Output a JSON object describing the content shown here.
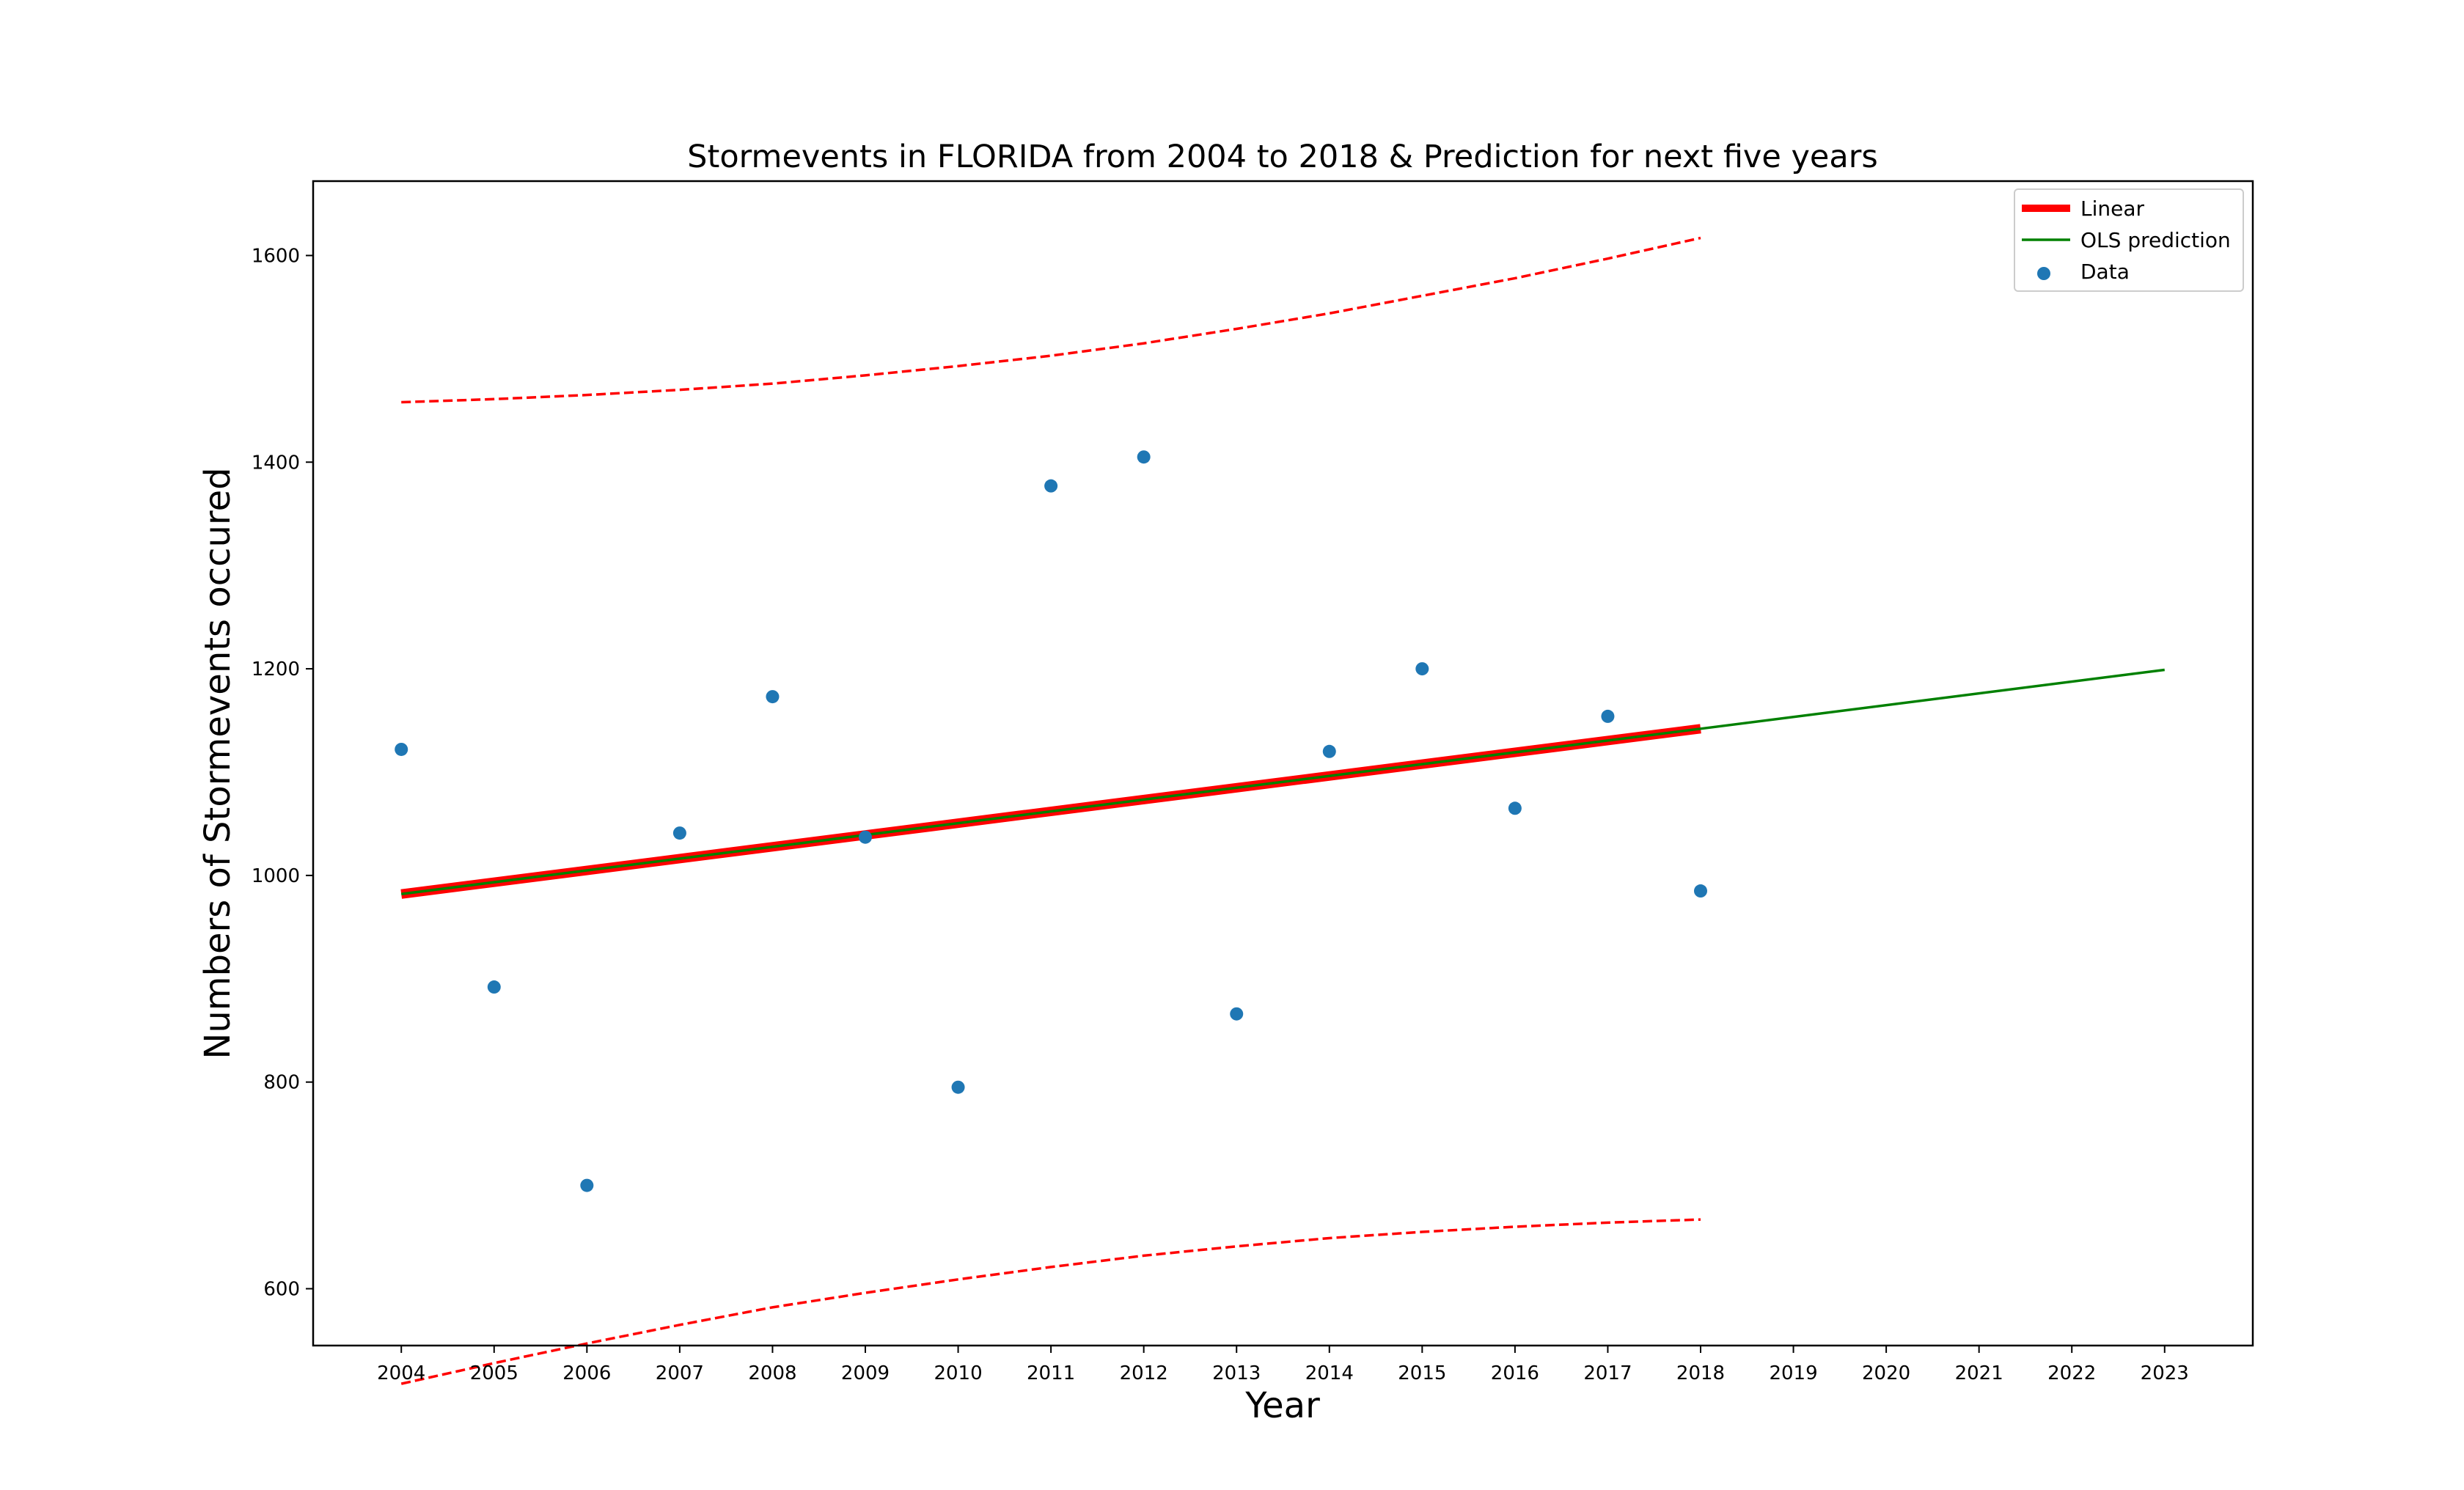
{
  "chart_data": {
    "type": "scatter",
    "title": "Stormevents in FLORIDA from 2004 to 2018 & Prediction for next five years",
    "xlabel": "Year",
    "ylabel": "Numbers of Stormevents occured",
    "xlim": [
      2003.05,
      2023.95
    ],
    "ylim": [
      545,
      1672
    ],
    "x_ticks": [
      2004,
      2005,
      2006,
      2007,
      2008,
      2009,
      2010,
      2011,
      2012,
      2013,
      2014,
      2015,
      2016,
      2017,
      2018,
      2019,
      2020,
      2021,
      2022,
      2023
    ],
    "x_tick_labels": [
      "2004",
      "2005",
      "2006",
      "2007",
      "2008",
      "2009",
      "2010",
      "2011",
      "2012",
      "2013",
      "2014",
      "2015",
      "2016",
      "2017",
      "2018",
      "2019",
      "2020",
      "2021",
      "2022",
      "2023"
    ],
    "y_ticks": [
      600,
      800,
      1000,
      1200,
      1400,
      1600
    ],
    "y_tick_labels": [
      "600",
      "800",
      "1000",
      "1200",
      "1400",
      "1600"
    ],
    "grid": false,
    "legend_position": "top-right",
    "legend": [
      {
        "label": "Linear",
        "kind": "thick-line",
        "color": "#ff0000"
      },
      {
        "label": "OLS prediction",
        "kind": "line",
        "color": "#008000"
      },
      {
        "label": "Data",
        "kind": "marker",
        "color": "#1f77b4"
      }
    ],
    "series": [
      {
        "name": "Data",
        "kind": "scatter",
        "color": "#1f77b4",
        "x": [
          2004,
          2005,
          2006,
          2007,
          2008,
          2009,
          2010,
          2011,
          2012,
          2013,
          2014,
          2015,
          2016,
          2017,
          2018
        ],
        "y": [
          1122,
          892,
          700,
          1041,
          1173,
          1037,
          795,
          1377,
          1405,
          866,
          1120,
          1200,
          1065,
          1154,
          985
        ]
      },
      {
        "name": "Linear",
        "kind": "line",
        "color": "#ff0000",
        "x": [
          2004,
          2018
        ],
        "y": [
          982,
          1142
        ]
      },
      {
        "name": "OLS prediction",
        "kind": "line",
        "color": "#008000",
        "x": [
          2004,
          2018,
          2023
        ],
        "y": [
          982,
          1142,
          1199
        ]
      },
      {
        "name": "Upper bound",
        "kind": "dashed",
        "color": "#ff0000",
        "x": [
          2004,
          2005,
          2006,
          2007,
          2008,
          2009,
          2010,
          2011,
          2012,
          2013,
          2014,
          2015,
          2016,
          2017,
          2018
        ],
        "y": [
          1458,
          1461,
          1465,
          1470,
          1476,
          1484,
          1493,
          1503,
          1515,
          1529,
          1544,
          1561,
          1578,
          1597,
          1617
        ]
      },
      {
        "name": "Lower bound",
        "kind": "dashed",
        "color": "#ff0000",
        "x": [
          2004,
          2005,
          2006,
          2007,
          2008,
          2009,
          2010,
          2011,
          2012,
          2013,
          2014,
          2015,
          2016,
          2017,
          2018
        ],
        "y": [
          508,
          528,
          547,
          565,
          582,
          596,
          609,
          621,
          632,
          641,
          649,
          655,
          660,
          664,
          667
        ]
      }
    ]
  }
}
